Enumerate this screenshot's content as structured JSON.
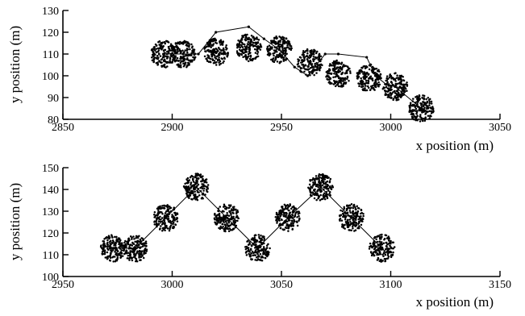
{
  "chart_data": [
    {
      "type": "scatter",
      "xlabel": "x position (m)",
      "ylabel": "y position (m)",
      "xlim": [
        2850,
        3050
      ],
      "ylim": [
        80,
        130
      ],
      "xticks": [
        2850,
        2900,
        2950,
        3000,
        3050
      ],
      "yticks": [
        80,
        90,
        100,
        110,
        120,
        130
      ],
      "xtick_labels": [
        "2850",
        "2900",
        "2950",
        "3000",
        "3050"
      ],
      "ytick_labels": [
        "80",
        "90",
        "100",
        "110",
        "120",
        "130"
      ],
      "grid": false,
      "clusters": [
        {
          "x": 2896,
          "y": 110
        },
        {
          "x": 2905,
          "y": 110
        },
        {
          "x": 2920,
          "y": 111
        },
        {
          "x": 2935,
          "y": 113
        },
        {
          "x": 2949,
          "y": 112
        },
        {
          "x": 2963,
          "y": 106
        },
        {
          "x": 2976,
          "y": 101
        },
        {
          "x": 2990,
          "y": 99
        },
        {
          "x": 3002,
          "y": 95
        },
        {
          "x": 3014,
          "y": 85
        }
      ],
      "path": [
        [
          2896,
          110
        ],
        [
          2905,
          110
        ],
        [
          2912,
          110
        ],
        [
          2920,
          120
        ],
        [
          2935,
          122.5
        ],
        [
          2942,
          117
        ],
        [
          2949,
          112
        ],
        [
          2956,
          104
        ],
        [
          2962,
          100
        ],
        [
          2970,
          110
        ],
        [
          2976,
          110
        ],
        [
          2989,
          108.5
        ],
        [
          2993,
          100
        ],
        [
          2998,
          96
        ],
        [
          3002,
          95
        ],
        [
          3014,
          85
        ]
      ]
    },
    {
      "type": "scatter",
      "xlabel": "x position (m)",
      "ylabel": "y position (m)",
      "xlim": [
        2950,
        3150
      ],
      "ylim": [
        100,
        150
      ],
      "xticks": [
        2950,
        3000,
        3050,
        3100,
        3150
      ],
      "yticks": [
        100,
        110,
        120,
        130,
        140,
        150
      ],
      "xtick_labels": [
        "2950",
        "3000",
        "3050",
        "3100",
        "3150"
      ],
      "ytick_labels": [
        "100",
        "110",
        "120",
        "130",
        "140",
        "150"
      ],
      "grid": false,
      "clusters": [
        {
          "x": 2973,
          "y": 113
        },
        {
          "x": 2983,
          "y": 113
        },
        {
          "x": 2997,
          "y": 127
        },
        {
          "x": 3011,
          "y": 141
        },
        {
          "x": 3025,
          "y": 127
        },
        {
          "x": 3039,
          "y": 113
        },
        {
          "x": 3053,
          "y": 127
        },
        {
          "x": 3068,
          "y": 141
        },
        {
          "x": 3082,
          "y": 127
        },
        {
          "x": 3096,
          "y": 113
        }
      ],
      "path": [
        [
          2973,
          113
        ],
        [
          2983,
          113
        ],
        [
          2997,
          127
        ],
        [
          3011,
          141
        ],
        [
          3025,
          127
        ],
        [
          3039,
          113
        ],
        [
          3053,
          127
        ],
        [
          3068,
          141
        ],
        [
          3082,
          127
        ],
        [
          3096,
          113
        ]
      ]
    }
  ]
}
